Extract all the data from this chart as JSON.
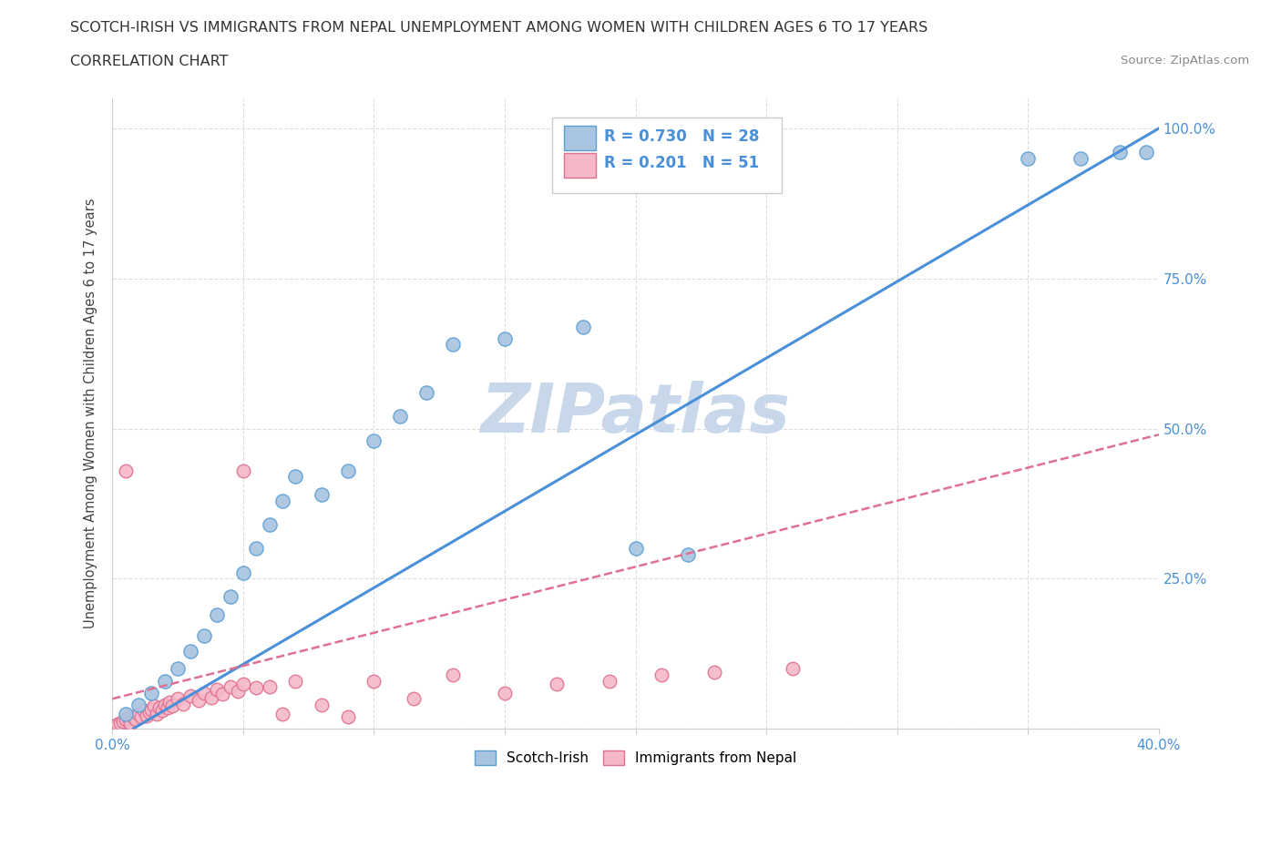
{
  "title": "SCOTCH-IRISH VS IMMIGRANTS FROM NEPAL UNEMPLOYMENT AMONG WOMEN WITH CHILDREN AGES 6 TO 17 YEARS",
  "subtitle": "CORRELATION CHART",
  "source": "Source: ZipAtlas.com",
  "ylabel": "Unemployment Among Women with Children Ages 6 to 17 years",
  "x_min": 0.0,
  "x_max": 0.4,
  "y_min": 0.0,
  "y_max": 1.05,
  "x_ticks": [
    0.0,
    0.05,
    0.1,
    0.15,
    0.2,
    0.25,
    0.3,
    0.35,
    0.4
  ],
  "y_ticks": [
    0.0,
    0.25,
    0.5,
    0.75,
    1.0
  ],
  "scotch_irish_R": 0.73,
  "scotch_irish_N": 28,
  "nepal_R": 0.201,
  "nepal_N": 51,
  "scotch_irish_color": "#a8c4e0",
  "scotch_irish_edge": "#5a9fd4",
  "nepal_color": "#f4b8c8",
  "nepal_edge": "#e07090",
  "line_scotch_color": "#4a90d9",
  "line_nepal_color": "#e07090",
  "watermark_color": "#c8d8ea",
  "scotch_irish_x": [
    0.005,
    0.01,
    0.015,
    0.02,
    0.025,
    0.03,
    0.035,
    0.04,
    0.045,
    0.05,
    0.055,
    0.06,
    0.065,
    0.07,
    0.08,
    0.09,
    0.1,
    0.11,
    0.12,
    0.13,
    0.15,
    0.18,
    0.2,
    0.22,
    0.35,
    0.37,
    0.385,
    0.395
  ],
  "scotch_irish_y": [
    0.025,
    0.04,
    0.06,
    0.08,
    0.1,
    0.13,
    0.155,
    0.19,
    0.22,
    0.26,
    0.3,
    0.34,
    0.38,
    0.42,
    0.39,
    0.43,
    0.48,
    0.52,
    0.56,
    0.64,
    0.65,
    0.67,
    0.3,
    0.29,
    0.95,
    0.95,
    0.96,
    0.96
  ],
  "nepal_x": [
    0.001,
    0.002,
    0.003,
    0.004,
    0.005,
    0.006,
    0.007,
    0.008,
    0.009,
    0.01,
    0.011,
    0.012,
    0.013,
    0.014,
    0.015,
    0.016,
    0.017,
    0.018,
    0.019,
    0.02,
    0.021,
    0.022,
    0.023,
    0.025,
    0.027,
    0.03,
    0.033,
    0.035,
    0.038,
    0.04,
    0.042,
    0.045,
    0.048,
    0.05,
    0.055,
    0.06,
    0.065,
    0.07,
    0.08,
    0.09,
    0.1,
    0.115,
    0.13,
    0.15,
    0.17,
    0.19,
    0.21,
    0.23,
    0.26,
    0.05,
    0.005
  ],
  "nepal_y": [
    0.005,
    0.008,
    0.01,
    0.012,
    0.015,
    0.018,
    0.01,
    0.02,
    0.015,
    0.025,
    0.02,
    0.03,
    0.022,
    0.028,
    0.032,
    0.038,
    0.025,
    0.035,
    0.03,
    0.04,
    0.035,
    0.045,
    0.038,
    0.05,
    0.042,
    0.055,
    0.048,
    0.06,
    0.052,
    0.065,
    0.058,
    0.07,
    0.062,
    0.075,
    0.068,
    0.07,
    0.025,
    0.08,
    0.04,
    0.02,
    0.08,
    0.05,
    0.09,
    0.06,
    0.075,
    0.08,
    0.09,
    0.095,
    0.1,
    0.43,
    0.43
  ],
  "background_color": "#ffffff",
  "grid_color": "#dddddd"
}
